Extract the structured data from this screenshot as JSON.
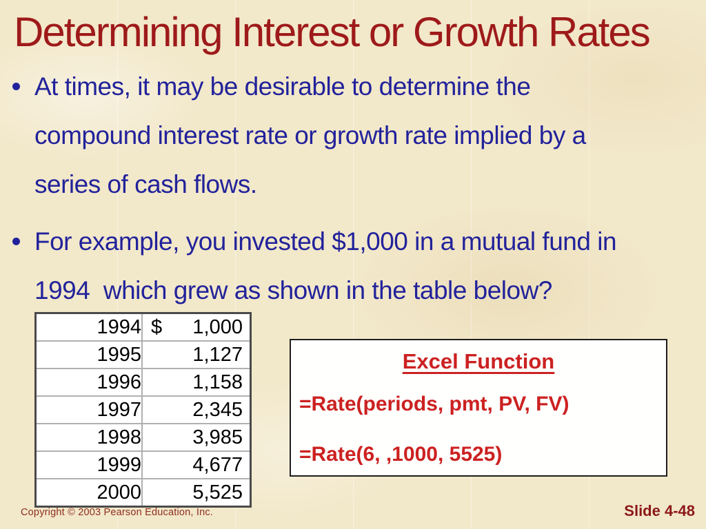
{
  "slide": {
    "title": "Determining Interest or Growth Rates",
    "bullets": [
      {
        "lines": [
          "At times, it may be desirable to determine the",
          "compound interest rate or growth rate implied by a",
          "series of cash flows."
        ]
      },
      {
        "lines": [
          "For example, you invested $1,000 in a mutual fund in",
          "1994  which grew as shown in the table below?"
        ]
      }
    ],
    "table": {
      "rows": [
        {
          "year": "1994",
          "currency": "$",
          "value": "1,000"
        },
        {
          "year": "1995",
          "currency": "",
          "value": "1,127"
        },
        {
          "year": "1996",
          "currency": "",
          "value": "1,158"
        },
        {
          "year": "1997",
          "currency": "",
          "value": "2,345"
        },
        {
          "year": "1998",
          "currency": "",
          "value": "3,985"
        },
        {
          "year": "1999",
          "currency": "",
          "value": "4,677"
        },
        {
          "year": "2000",
          "currency": "",
          "value": "5,525"
        }
      ]
    },
    "excel_box": {
      "heading": "Excel Function",
      "lines": [
        "=Rate(periods, pmt, PV, FV)",
        "=Rate(6, ,1000, 5525)"
      ]
    },
    "footer": {
      "copyright": "Copyright © 2003 Pearson Education, Inc.",
      "slide_number": "Slide 4-48"
    },
    "colors": {
      "background": "#f2e8ca",
      "title_red": "#9e1a1a",
      "body_blue": "#22229b",
      "formula_red": "#cc2121",
      "footer_red": "#8f2e20",
      "table_border_outer": "#4a4a4a",
      "table_border_inner": "#b0b0b0",
      "table_background": "#ffffff"
    }
  }
}
